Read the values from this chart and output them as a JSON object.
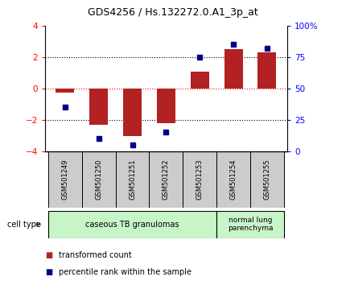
{
  "title": "GDS4256 / Hs.132272.0.A1_3p_at",
  "samples": [
    "GSM501249",
    "GSM501250",
    "GSM501251",
    "GSM501252",
    "GSM501253",
    "GSM501254",
    "GSM501255"
  ],
  "transformed_count": [
    -0.28,
    -2.3,
    -3.05,
    -2.2,
    1.05,
    2.5,
    2.3
  ],
  "percentile_rank": [
    35,
    10,
    5,
    15,
    75,
    85,
    82
  ],
  "bar_color": "#b22222",
  "dot_color": "#00008b",
  "ylim_left": [
    -4,
    4
  ],
  "ylim_right": [
    0,
    100
  ],
  "yticks_left": [
    -4,
    -2,
    0,
    2,
    4
  ],
  "yticks_right": [
    0,
    25,
    50,
    75,
    100
  ],
  "ytick_labels_right": [
    "0",
    "25",
    "50",
    "75",
    "100%"
  ],
  "group1_label": "caseous TB granulomas",
  "group1_samples": 5,
  "group2_label": "normal lung\nparenchyma",
  "group2_samples": 2,
  "group_bg_color": "#c8f5c8",
  "tick_bg_color": "#cccccc",
  "legend_bar_label": "transformed count",
  "legend_dot_label": "percentile rank within the sample",
  "cell_type_label": "cell type"
}
